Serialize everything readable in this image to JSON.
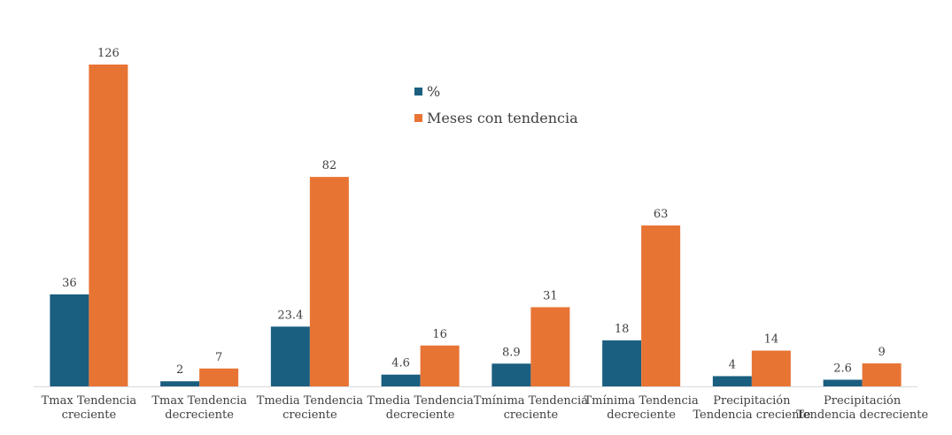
{
  "chart_data": {
    "type": "bar",
    "title": "",
    "xlabel": "",
    "ylabel": "",
    "categories": [
      [
        "Tmax Tendencia",
        "creciente"
      ],
      [
        "Tmax Tendencia",
        "decreciente"
      ],
      [
        "Tmedia Tendencia",
        "creciente"
      ],
      [
        "Tmedia Tendencia",
        "decreciente"
      ],
      [
        "Tmínima Tendencia",
        "creciente"
      ],
      [
        "Tmínima Tendencia",
        "decreciente"
      ],
      [
        "Precipitación",
        "Tendencia creciente"
      ],
      [
        "Precipitación",
        "Tendencia decreciente"
      ]
    ],
    "series": [
      {
        "name": "%",
        "color": "#1a5e80",
        "values": [
          36,
          2,
          23.4,
          4.6,
          8.9,
          18,
          4,
          2.6
        ]
      },
      {
        "name": "Meses con tendencia",
        "color": "#e87434",
        "values": [
          126,
          7,
          82,
          16,
          31,
          63,
          14,
          9
        ]
      }
    ],
    "ylim": [
      0,
      126
    ],
    "grid": false,
    "legend_position": "top-center",
    "axis_color": "#d9d9d9"
  }
}
